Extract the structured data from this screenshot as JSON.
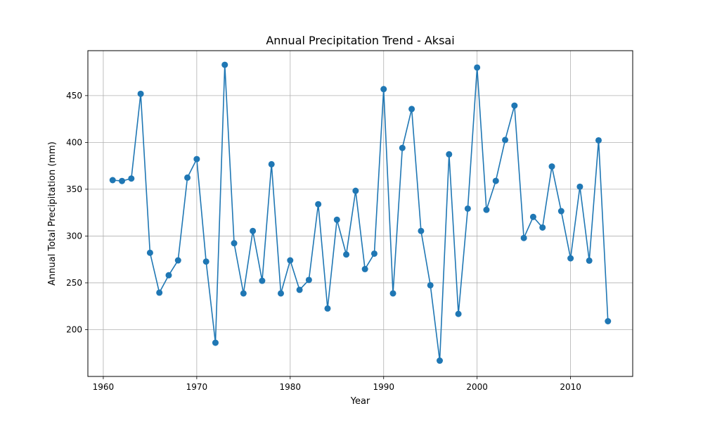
{
  "chart_data": {
    "type": "line",
    "title": "Annual Precipitation Trend - Aksai",
    "xlabel": "Year",
    "ylabel": "Annual Total Precipitation (mm)",
    "xlim": [
      1958.35,
      2016.65
    ],
    "ylim": [
      150.0,
      498.0
    ],
    "xticks": [
      1960,
      1970,
      1980,
      1990,
      2000,
      2010
    ],
    "yticks": [
      200,
      250,
      300,
      350,
      400,
      450
    ],
    "grid": true,
    "legend": "none",
    "series": [
      {
        "color": "#1f77b4",
        "marker": "circle",
        "x": [
          1961,
          1962,
          1963,
          1964,
          1965,
          1966,
          1967,
          1968,
          1969,
          1970,
          1971,
          1972,
          1973,
          1974,
          1975,
          1976,
          1977,
          1978,
          1979,
          1980,
          1981,
          1982,
          1983,
          1984,
          1985,
          1986,
          1987,
          1988,
          1989,
          1990,
          1991,
          1992,
          1993,
          1994,
          1995,
          1996,
          1997,
          1998,
          1999,
          2000,
          2001,
          2002,
          2003,
          2004,
          2005,
          2006,
          2007,
          2008,
          2009,
          2010,
          2011,
          2012,
          2013,
          2014
        ],
        "y": [
          359.7,
          358.8,
          361.4,
          451.9,
          282.1,
          239.5,
          258.1,
          274.0,
          362.4,
          382.2,
          272.7,
          186.0,
          482.9,
          292.3,
          238.7,
          305.4,
          252.2,
          376.7,
          238.7,
          274.0,
          242.5,
          253.1,
          334.0,
          222.6,
          317.4,
          280.3,
          348.3,
          264.7,
          281.2,
          456.9,
          238.7,
          394.1,
          435.7,
          305.4,
          247.4,
          166.9,
          387.3,
          216.8,
          329.3,
          480.0,
          328.0,
          358.9,
          402.6,
          439.3,
          297.9,
          320.4,
          309.1,
          374.3,
          326.6,
          276.2,
          352.7,
          273.7,
          402.2,
          209.0
        ]
      }
    ]
  }
}
